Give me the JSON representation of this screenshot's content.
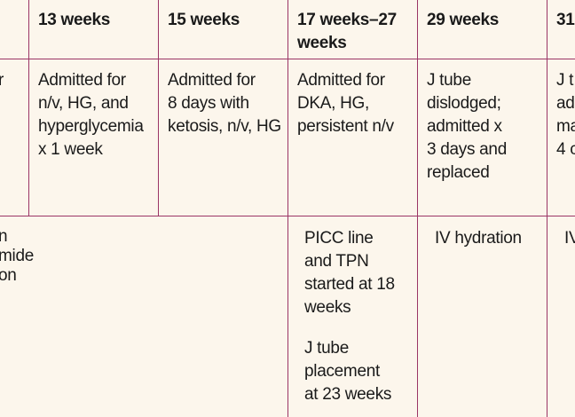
{
  "table": {
    "header": [
      [
        [
          "13 weeks"
        ]
      ],
      [
        [
          "15 weeks"
        ]
      ],
      [
        [
          "17 weeks–27",
          "weeks"
        ]
      ],
      [
        [
          "29 weeks"
        ]
      ],
      [
        [
          "31"
        ]
      ]
    ],
    "rows": [
      [
        [
          [
            "r"
          ]
        ],
        [
          [
            "Admitted for",
            "n/v, HG, and",
            "hyperglycemia",
            "x 1 week"
          ]
        ],
        [
          [
            "Admitted for",
            "8 days with",
            "ketosis, n/v, HG"
          ]
        ],
        [
          [
            "Admitted for",
            "DKA, HG,",
            "persistent n/v"
          ]
        ],
        [
          [
            "J tube",
            "dislodged;",
            "admitted x",
            "3 days and",
            "replaced"
          ]
        ],
        [
          [
            "J t",
            "ad",
            "ma",
            "4 c"
          ]
        ]
      ],
      [
        [
          [
            "n",
            "mide",
            "on"
          ]
        ],
        [
          [
            "PICC line",
            "and TPN",
            "started at 18",
            "weeks"
          ],
          [
            "J tube",
            "placement",
            "at 23 weeks"
          ]
        ],
        [
          [
            "IV hydration"
          ]
        ],
        [
          [
            "IV"
          ]
        ]
      ]
    ]
  }
}
